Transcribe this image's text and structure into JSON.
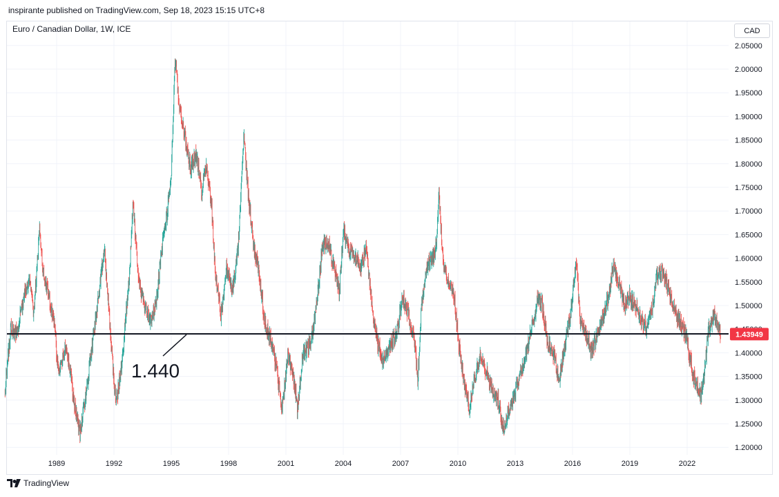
{
  "header": {
    "published_text": "inspirante published on TradingView.com, Sep 18, 2023 15:15 UTC+8",
    "symbol_title": "Euro / Canadian Dollar, 1W, ICE",
    "currency": "CAD"
  },
  "footer": {
    "brand": "TradingView"
  },
  "colors": {
    "up": "#26a69a",
    "down": "#ef5350",
    "line": "#131722",
    "grid": "#f0f3fa",
    "price_badge": "#f23645"
  },
  "chart_data": {
    "type": "candlestick",
    "title": "Euro / Canadian Dollar, 1W, ICE",
    "ylim": [
      1.19,
      2.07
    ],
    "xlim": [
      1986.3,
      2024.3
    ],
    "y_ticks": [
      "2.05000",
      "2.00000",
      "1.95000",
      "1.90000",
      "1.85000",
      "1.80000",
      "1.75000",
      "1.70000",
      "1.65000",
      "1.60000",
      "1.55000",
      "1.50000",
      "1.45000",
      "1.40000",
      "1.35000",
      "1.30000",
      "1.25000",
      "1.20000"
    ],
    "y_tick_values": [
      2.05,
      2.0,
      1.95,
      1.9,
      1.85,
      1.8,
      1.75,
      1.7,
      1.65,
      1.6,
      1.55,
      1.5,
      1.45,
      1.4,
      1.35,
      1.3,
      1.25,
      1.2
    ],
    "x_ticks": [
      "1989",
      "1992",
      "1995",
      "1998",
      "2001",
      "2004",
      "2007",
      "2010",
      "2013",
      "2016",
      "2019",
      "2022"
    ],
    "x_tick_values": [
      1989,
      1992,
      1995,
      1998,
      2001,
      2004,
      2007,
      2010,
      2013,
      2016,
      2019,
      2022
    ],
    "series_path": [
      [
        1986.3,
        1.32
      ],
      [
        1986.6,
        1.45
      ],
      [
        1986.9,
        1.44
      ],
      [
        1987.3,
        1.52
      ],
      [
        1987.6,
        1.55
      ],
      [
        1987.8,
        1.48
      ],
      [
        1988.1,
        1.66
      ],
      [
        1988.3,
        1.57
      ],
      [
        1988.6,
        1.52
      ],
      [
        1988.9,
        1.45
      ],
      [
        1989.1,
        1.35
      ],
      [
        1989.5,
        1.42
      ],
      [
        1989.9,
        1.3
      ],
      [
        1990.2,
        1.23
      ],
      [
        1990.5,
        1.3
      ],
      [
        1990.9,
        1.43
      ],
      [
        1991.3,
        1.55
      ],
      [
        1991.5,
        1.62
      ],
      [
        1991.8,
        1.45
      ],
      [
        1992.1,
        1.29
      ],
      [
        1992.4,
        1.37
      ],
      [
        1992.8,
        1.56
      ],
      [
        1993.0,
        1.72
      ],
      [
        1993.3,
        1.55
      ],
      [
        1993.6,
        1.5
      ],
      [
        1993.9,
        1.47
      ],
      [
        1994.2,
        1.5
      ],
      [
        1994.5,
        1.62
      ],
      [
        1994.8,
        1.7
      ],
      [
        1995.0,
        1.78
      ],
      [
        1995.2,
        2.02
      ],
      [
        1995.4,
        1.93
      ],
      [
        1995.7,
        1.86
      ],
      [
        1996.0,
        1.79
      ],
      [
        1996.3,
        1.82
      ],
      [
        1996.6,
        1.74
      ],
      [
        1996.8,
        1.8
      ],
      [
        1997.1,
        1.72
      ],
      [
        1997.3,
        1.57
      ],
      [
        1997.6,
        1.48
      ],
      [
        1997.9,
        1.58
      ],
      [
        1998.2,
        1.53
      ],
      [
        1998.5,
        1.62
      ],
      [
        1998.8,
        1.86
      ],
      [
        1999.0,
        1.75
      ],
      [
        1999.3,
        1.63
      ],
      [
        1999.6,
        1.57
      ],
      [
        1999.9,
        1.46
      ],
      [
        2000.2,
        1.43
      ],
      [
        2000.5,
        1.37
      ],
      [
        2000.8,
        1.28
      ],
      [
        2001.1,
        1.4
      ],
      [
        2001.4,
        1.35
      ],
      [
        2001.6,
        1.28
      ],
      [
        2001.9,
        1.4
      ],
      [
        2002.3,
        1.42
      ],
      [
        2002.6,
        1.5
      ],
      [
        2002.9,
        1.62
      ],
      [
        2003.2,
        1.64
      ],
      [
        2003.5,
        1.58
      ],
      [
        2003.8,
        1.53
      ],
      [
        2004.0,
        1.66
      ],
      [
        2004.3,
        1.62
      ],
      [
        2004.6,
        1.61
      ],
      [
        2004.9,
        1.58
      ],
      [
        2005.2,
        1.62
      ],
      [
        2005.5,
        1.5
      ],
      [
        2005.8,
        1.42
      ],
      [
        2006.1,
        1.38
      ],
      [
        2006.5,
        1.42
      ],
      [
        2006.8,
        1.44
      ],
      [
        2007.1,
        1.52
      ],
      [
        2007.4,
        1.48
      ],
      [
        2007.7,
        1.44
      ],
      [
        2007.9,
        1.34
      ],
      [
        2008.1,
        1.5
      ],
      [
        2008.4,
        1.58
      ],
      [
        2008.7,
        1.6
      ],
      [
        2008.9,
        1.64
      ],
      [
        2009.0,
        1.74
      ],
      [
        2009.2,
        1.6
      ],
      [
        2009.5,
        1.55
      ],
      [
        2009.8,
        1.52
      ],
      [
        2010.1,
        1.4
      ],
      [
        2010.4,
        1.32
      ],
      [
        2010.6,
        1.28
      ],
      [
        2010.9,
        1.35
      ],
      [
        2011.2,
        1.4
      ],
      [
        2011.5,
        1.36
      ],
      [
        2011.8,
        1.32
      ],
      [
        2012.1,
        1.3
      ],
      [
        2012.4,
        1.24
      ],
      [
        2012.7,
        1.28
      ],
      [
        2013.0,
        1.32
      ],
      [
        2013.3,
        1.36
      ],
      [
        2013.6,
        1.4
      ],
      [
        2013.9,
        1.46
      ],
      [
        2014.2,
        1.52
      ],
      [
        2014.4,
        1.5
      ],
      [
        2014.7,
        1.42
      ],
      [
        2015.0,
        1.4
      ],
      [
        2015.3,
        1.34
      ],
      [
        2015.6,
        1.42
      ],
      [
        2015.9,
        1.48
      ],
      [
        2016.2,
        1.6
      ],
      [
        2016.4,
        1.47
      ],
      [
        2016.7,
        1.44
      ],
      [
        2017.0,
        1.4
      ],
      [
        2017.3,
        1.44
      ],
      [
        2017.6,
        1.48
      ],
      [
        2017.9,
        1.52
      ],
      [
        2018.1,
        1.58
      ],
      [
        2018.4,
        1.55
      ],
      [
        2018.7,
        1.5
      ],
      [
        2019.0,
        1.52
      ],
      [
        2019.3,
        1.5
      ],
      [
        2019.6,
        1.47
      ],
      [
        2019.9,
        1.45
      ],
      [
        2020.2,
        1.5
      ],
      [
        2020.4,
        1.56
      ],
      [
        2020.7,
        1.57
      ],
      [
        2021.0,
        1.54
      ],
      [
        2021.3,
        1.49
      ],
      [
        2021.6,
        1.47
      ],
      [
        2021.9,
        1.44
      ],
      [
        2022.1,
        1.4
      ],
      [
        2022.4,
        1.34
      ],
      [
        2022.7,
        1.31
      ],
      [
        2022.9,
        1.35
      ],
      [
        2023.1,
        1.45
      ],
      [
        2023.4,
        1.48
      ],
      [
        2023.6,
        1.46
      ],
      [
        2023.75,
        1.44
      ]
    ],
    "candle_count": 1950,
    "candle_seed": 20230918,
    "horizontal_level": {
      "value": 1.44,
      "label": "1.440"
    },
    "last_price": {
      "value": 1.43949,
      "label": "1.43949"
    }
  }
}
